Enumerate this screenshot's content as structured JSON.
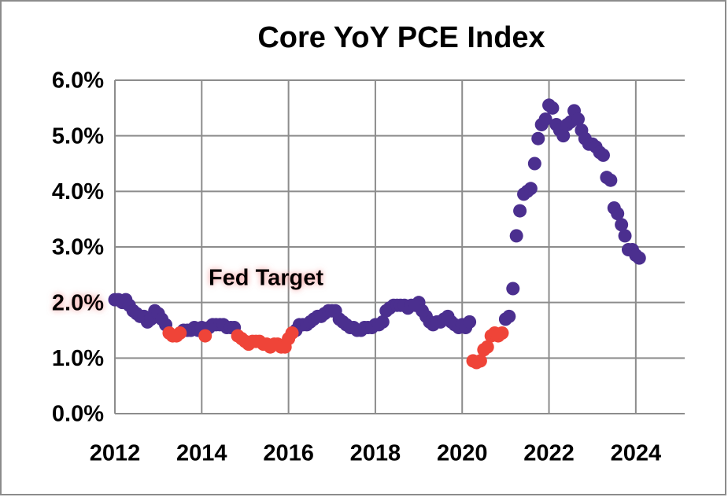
{
  "chart_data": {
    "type": "scatter",
    "title": "Core YoY PCE Index",
    "xlim": [
      2012,
      2025
    ],
    "xticks": [
      2012,
      2014,
      2016,
      2018,
      2020,
      2022,
      2024
    ],
    "ylim": [
      0,
      6
    ],
    "yticks": [
      {
        "value": 0,
        "label": "0.0%"
      },
      {
        "value": 1,
        "label": "1.0%"
      },
      {
        "value": 2,
        "label": "2.0%"
      },
      {
        "value": 3,
        "label": "3.0%"
      },
      {
        "value": 4,
        "label": "4.0%"
      },
      {
        "value": 5,
        "label": "5.0%"
      },
      {
        "value": 6,
        "label": "6.0%"
      }
    ],
    "grid": true,
    "target": {
      "label": "Fed Target",
      "value": 2,
      "color": "#e87d7d"
    },
    "series": [
      {
        "color": "#4b2f8f",
        "x": [
          2012,
          2012.08,
          2012.17,
          2012.25,
          2012.33,
          2012.42,
          2012.5,
          2012.58,
          2012.67,
          2012.75,
          2012.83,
          2012.92,
          2013,
          2013.08,
          2013.17,
          2013.58,
          2013.67,
          2013.75,
          2013.83,
          2013.92,
          2014,
          2014.17,
          2014.25,
          2014.33,
          2014.42,
          2014.5,
          2014.58,
          2014.67,
          2014.75,
          2016.17,
          2016.25,
          2016.33,
          2016.42,
          2016.5,
          2016.58,
          2016.67,
          2016.75,
          2016.83,
          2016.92,
          2017,
          2017.08,
          2017.17,
          2017.25,
          2017.33,
          2017.42,
          2017.5,
          2017.58,
          2017.67,
          2017.75,
          2017.83,
          2017.92,
          2018,
          2018.08,
          2018.17,
          2018.25,
          2018.33,
          2018.42,
          2018.5,
          2018.58,
          2018.67,
          2018.75,
          2018.83,
          2018.92,
          2019,
          2019.08,
          2019.17,
          2019.25,
          2019.33,
          2019.42,
          2019.5,
          2019.58,
          2019.67,
          2019.75,
          2019.83,
          2019.92,
          2020,
          2020.08,
          2020.17,
          2021,
          2021.08,
          2021.17,
          2021.25,
          2021.33,
          2021.42,
          2021.5,
          2021.58,
          2021.67,
          2021.75,
          2021.83,
          2021.92,
          2022,
          2022.08,
          2022.17,
          2022.25,
          2022.33,
          2022.42,
          2022.5,
          2022.58,
          2022.67,
          2022.75,
          2022.83,
          2022.92,
          2023,
          2023.08,
          2023.17,
          2023.25,
          2023.33,
          2023.42,
          2023.5,
          2023.58,
          2023.67,
          2023.75,
          2023.83,
          2023.92,
          2024,
          2024.08
        ],
        "values": [
          2.05,
          2.05,
          2.0,
          2.05,
          1.95,
          1.85,
          1.8,
          1.75,
          1.75,
          1.65,
          1.7,
          1.85,
          1.8,
          1.7,
          1.6,
          1.5,
          1.5,
          1.5,
          1.55,
          1.5,
          1.55,
          1.55,
          1.6,
          1.6,
          1.6,
          1.6,
          1.55,
          1.55,
          1.55,
          1.5,
          1.6,
          1.6,
          1.6,
          1.65,
          1.7,
          1.75,
          1.75,
          1.8,
          1.85,
          1.85,
          1.85,
          1.7,
          1.65,
          1.6,
          1.55,
          1.55,
          1.5,
          1.5,
          1.55,
          1.55,
          1.55,
          1.6,
          1.6,
          1.65,
          1.85,
          1.9,
          1.95,
          1.95,
          1.95,
          1.95,
          1.9,
          1.95,
          1.95,
          2.0,
          1.85,
          1.75,
          1.65,
          1.6,
          1.65,
          1.65,
          1.7,
          1.75,
          1.65,
          1.6,
          1.55,
          1.6,
          1.55,
          1.65,
          1.7,
          1.75,
          2.25,
          3.2,
          3.65,
          3.95,
          4.0,
          4.05,
          4.5,
          4.95,
          5.2,
          5.3,
          5.55,
          5.5,
          5.2,
          5.1,
          5.0,
          5.2,
          5.25,
          5.45,
          5.3,
          5.1,
          4.95,
          4.85,
          4.85,
          4.8,
          4.7,
          4.65,
          4.25,
          4.2,
          3.7,
          3.6,
          3.4,
          3.2,
          2.95,
          2.95,
          2.85,
          2.8
        ]
      },
      {
        "color": "#ef4438",
        "x": [
          2013.25,
          2013.33,
          2013.42,
          2013.5,
          2014.08,
          2014.83,
          2014.92,
          2015,
          2015.08,
          2015.17,
          2015.25,
          2015.33,
          2015.42,
          2015.5,
          2015.58,
          2015.67,
          2015.75,
          2015.83,
          2015.92,
          2016,
          2016.08,
          2020.25,
          2020.33,
          2020.42,
          2020.5,
          2020.58,
          2020.67,
          2020.75,
          2020.83,
          2020.92
        ],
        "values": [
          1.45,
          1.4,
          1.4,
          1.45,
          1.4,
          1.4,
          1.35,
          1.3,
          1.25,
          1.3,
          1.3,
          1.3,
          1.25,
          1.25,
          1.2,
          1.25,
          1.25,
          1.2,
          1.2,
          1.35,
          1.45,
          0.95,
          0.92,
          0.95,
          1.15,
          1.2,
          1.4,
          1.45,
          1.4,
          1.45
        ]
      }
    ]
  }
}
